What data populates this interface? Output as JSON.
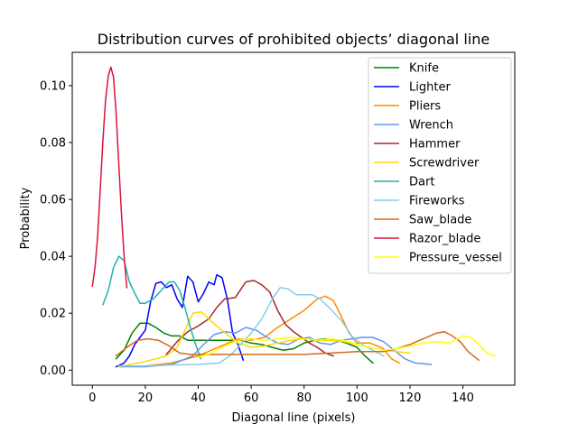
{
  "chart_data": {
    "type": "line",
    "title": "Distribution curves of prohibited objects’ diagonal line",
    "xlabel": "Diagonal line (pixels)",
    "ylabel": "Probability",
    "xlim": [
      -7.6,
      159.6
    ],
    "ylim": [
      -0.0053,
      0.1117
    ],
    "xticks": [
      0,
      20,
      40,
      60,
      80,
      100,
      120,
      140
    ],
    "xtick_labels": [
      "0",
      "20",
      "40",
      "60",
      "80",
      "100",
      "120",
      "140"
    ],
    "yticks": [
      0.0,
      0.02,
      0.04,
      0.06,
      0.08,
      0.1
    ],
    "ytick_labels": [
      "0.00",
      "0.02",
      "0.04",
      "0.06",
      "0.08",
      "0.10"
    ],
    "grid": false,
    "legend_position": "top-right",
    "series": [
      {
        "name": "Knife",
        "color": "#008000",
        "points": [
          [
            9,
            0.004
          ],
          [
            12,
            0.007
          ],
          [
            15,
            0.013
          ],
          [
            18,
            0.0165
          ],
          [
            21,
            0.0165
          ],
          [
            24,
            0.015
          ],
          [
            27,
            0.013
          ],
          [
            30,
            0.012
          ],
          [
            33,
            0.012
          ],
          [
            36,
            0.0105
          ],
          [
            40,
            0.0105
          ],
          [
            44,
            0.0105
          ],
          [
            48,
            0.0105
          ],
          [
            52,
            0.0105
          ],
          [
            56,
            0.0105
          ],
          [
            60,
            0.0095
          ],
          [
            64,
            0.009
          ],
          [
            68,
            0.008
          ],
          [
            72,
            0.007
          ],
          [
            76,
            0.0075
          ],
          [
            80,
            0.0095
          ],
          [
            84,
            0.0105
          ],
          [
            88,
            0.011
          ],
          [
            92,
            0.0105
          ],
          [
            96,
            0.0095
          ],
          [
            100,
            0.008
          ],
          [
            103,
            0.005
          ],
          [
            106,
            0.0025
          ]
        ]
      },
      {
        "name": "Lighter",
        "color": "#0000ff",
        "points": [
          [
            9,
            0.0012
          ],
          [
            12,
            0.0025
          ],
          [
            14,
            0.005
          ],
          [
            16,
            0.009
          ],
          [
            18,
            0.0115
          ],
          [
            20,
            0.014
          ],
          [
            22,
            0.024
          ],
          [
            24,
            0.0305
          ],
          [
            26,
            0.031
          ],
          [
            28,
            0.029
          ],
          [
            30,
            0.03
          ],
          [
            32,
            0.025
          ],
          [
            34,
            0.022
          ],
          [
            36,
            0.033
          ],
          [
            38,
            0.031
          ],
          [
            40,
            0.024
          ],
          [
            42,
            0.027
          ],
          [
            44,
            0.031
          ],
          [
            46,
            0.03
          ],
          [
            47,
            0.0335
          ],
          [
            49,
            0.0325
          ],
          [
            51,
            0.025
          ],
          [
            53,
            0.013
          ],
          [
            55,
            0.009
          ],
          [
            57,
            0.0035
          ]
        ]
      },
      {
        "name": "Pliers",
        "color": "#ff8c00",
        "points": [
          [
            10,
            0.0012
          ],
          [
            20,
            0.0015
          ],
          [
            30,
            0.0025
          ],
          [
            40,
            0.005
          ],
          [
            45,
            0.007
          ],
          [
            50,
            0.009
          ],
          [
            55,
            0.011
          ],
          [
            60,
            0.0105
          ],
          [
            65,
            0.0115
          ],
          [
            70,
            0.015
          ],
          [
            75,
            0.018
          ],
          [
            80,
            0.021
          ],
          [
            85,
            0.025
          ],
          [
            88,
            0.026
          ],
          [
            91,
            0.0245
          ],
          [
            94,
            0.019
          ],
          [
            97,
            0.013
          ],
          [
            100,
            0.0095
          ],
          [
            105,
            0.0095
          ],
          [
            110,
            0.0075
          ],
          [
            113,
            0.004
          ],
          [
            116,
            0.0025
          ]
        ]
      },
      {
        "name": "Wrench",
        "color": "#6495ed",
        "points": [
          [
            10,
            0.0012
          ],
          [
            20,
            0.0012
          ],
          [
            30,
            0.002
          ],
          [
            38,
            0.005
          ],
          [
            42,
            0.009
          ],
          [
            46,
            0.0125
          ],
          [
            50,
            0.0135
          ],
          [
            54,
            0.013
          ],
          [
            58,
            0.015
          ],
          [
            62,
            0.014
          ],
          [
            66,
            0.0115
          ],
          [
            70,
            0.0095
          ],
          [
            74,
            0.009
          ],
          [
            78,
            0.011
          ],
          [
            82,
            0.0115
          ],
          [
            86,
            0.0095
          ],
          [
            90,
            0.009
          ],
          [
            94,
            0.0105
          ],
          [
            98,
            0.011
          ],
          [
            102,
            0.0115
          ],
          [
            106,
            0.0115
          ],
          [
            110,
            0.01
          ],
          [
            114,
            0.007
          ],
          [
            118,
            0.004
          ],
          [
            122,
            0.0025
          ],
          [
            128,
            0.002
          ]
        ]
      },
      {
        "name": "Hammer",
        "color": "#a52a2a",
        "points": [
          [
            28,
            0.0055
          ],
          [
            32,
            0.01
          ],
          [
            36,
            0.0135
          ],
          [
            40,
            0.0155
          ],
          [
            44,
            0.018
          ],
          [
            47,
            0.022
          ],
          [
            50,
            0.025
          ],
          [
            54,
            0.0255
          ],
          [
            58,
            0.031
          ],
          [
            61,
            0.0315
          ],
          [
            64,
            0.03
          ],
          [
            67,
            0.0275
          ],
          [
            70,
            0.021
          ],
          [
            73,
            0.016
          ],
          [
            76,
            0.0135
          ],
          [
            79,
            0.0115
          ],
          [
            82,
            0.0095
          ],
          [
            85,
            0.008
          ],
          [
            88,
            0.006
          ],
          [
            91,
            0.005
          ]
        ]
      },
      {
        "name": "Screwdriver",
        "color": "#ffd700",
        "points": [
          [
            10,
            0.0012
          ],
          [
            20,
            0.003
          ],
          [
            28,
            0.005
          ],
          [
            32,
            0.008
          ],
          [
            35,
            0.014
          ],
          [
            38,
            0.02
          ],
          [
            41,
            0.0205
          ],
          [
            44,
            0.018
          ],
          [
            47,
            0.0155
          ],
          [
            51,
            0.0125
          ],
          [
            55,
            0.0095
          ],
          [
            60,
            0.008
          ],
          [
            65,
            0.0085
          ],
          [
            70,
            0.0095
          ],
          [
            75,
            0.0105
          ],
          [
            80,
            0.011
          ],
          [
            85,
            0.0105
          ],
          [
            90,
            0.0105
          ],
          [
            95,
            0.01
          ],
          [
            100,
            0.009
          ],
          [
            105,
            0.008
          ],
          [
            110,
            0.007
          ],
          [
            115,
            0.0065
          ],
          [
            120,
            0.006
          ]
        ]
      },
      {
        "name": "Dart",
        "color": "#20b2aa",
        "points": [
          [
            4,
            0.023
          ],
          [
            6,
            0.028
          ],
          [
            8,
            0.036
          ],
          [
            10,
            0.04
          ],
          [
            12,
            0.0385
          ],
          [
            14,
            0.031
          ],
          [
            16,
            0.027
          ],
          [
            18,
            0.0235
          ],
          [
            20,
            0.0235
          ],
          [
            23,
            0.025
          ],
          [
            26,
            0.028
          ],
          [
            29,
            0.031
          ],
          [
            31,
            0.031
          ],
          [
            33,
            0.028
          ],
          [
            35,
            0.022
          ],
          [
            37,
            0.015
          ],
          [
            39,
            0.009
          ],
          [
            41,
            0.004
          ]
        ]
      },
      {
        "name": "Fireworks",
        "color": "#87ceeb",
        "points": [
          [
            10,
            0.0015
          ],
          [
            20,
            0.0015
          ],
          [
            30,
            0.0018
          ],
          [
            40,
            0.002
          ],
          [
            48,
            0.0025
          ],
          [
            52,
            0.005
          ],
          [
            56,
            0.009
          ],
          [
            60,
            0.013
          ],
          [
            64,
            0.018
          ],
          [
            68,
            0.025
          ],
          [
            71,
            0.029
          ],
          [
            74,
            0.0285
          ],
          [
            77,
            0.0265
          ],
          [
            80,
            0.0265
          ],
          [
            83,
            0.0265
          ],
          [
            86,
            0.025
          ],
          [
            90,
            0.0215
          ],
          [
            94,
            0.0175
          ],
          [
            98,
            0.012
          ],
          [
            102,
            0.009
          ],
          [
            106,
            0.007
          ],
          [
            110,
            0.005
          ]
        ]
      },
      {
        "name": "Saw_blade",
        "color": "#d2691e",
        "points": [
          [
            9,
            0.005
          ],
          [
            13,
            0.008
          ],
          [
            17,
            0.0105
          ],
          [
            21,
            0.011
          ],
          [
            25,
            0.0105
          ],
          [
            29,
            0.0085
          ],
          [
            33,
            0.006
          ],
          [
            37,
            0.0055
          ],
          [
            41,
            0.0055
          ],
          [
            45,
            0.0055
          ],
          [
            50,
            0.0055
          ],
          [
            60,
            0.0055
          ],
          [
            70,
            0.0055
          ],
          [
            80,
            0.0055
          ],
          [
            90,
            0.006
          ],
          [
            100,
            0.0065
          ],
          [
            110,
            0.0065
          ],
          [
            115,
            0.0075
          ],
          [
            120,
            0.009
          ],
          [
            125,
            0.011
          ],
          [
            130,
            0.013
          ],
          [
            133,
            0.0135
          ],
          [
            136,
            0.012
          ],
          [
            139,
            0.01
          ],
          [
            142,
            0.0065
          ],
          [
            146,
            0.0035
          ]
        ]
      },
      {
        "name": "Razor_blade",
        "color": "#dc143c",
        "points": [
          [
            0,
            0.0295
          ],
          [
            1,
            0.036
          ],
          [
            2,
            0.047
          ],
          [
            3,
            0.064
          ],
          [
            4,
            0.081
          ],
          [
            5,
            0.095
          ],
          [
            6,
            0.1035
          ],
          [
            7,
            0.1065
          ],
          [
            8,
            0.103
          ],
          [
            9,
            0.09
          ],
          [
            10,
            0.072
          ],
          [
            11,
            0.055
          ],
          [
            12,
            0.04
          ],
          [
            13,
            0.029
          ]
        ]
      },
      {
        "name": "Pressure_vessel",
        "color": "#ffff00",
        "points": [
          [
            40,
            0.0045
          ],
          [
            45,
            0.006
          ],
          [
            50,
            0.0085
          ],
          [
            55,
            0.0105
          ],
          [
            60,
            0.011
          ],
          [
            65,
            0.0105
          ],
          [
            70,
            0.011
          ],
          [
            75,
            0.0115
          ],
          [
            80,
            0.011
          ],
          [
            85,
            0.0105
          ],
          [
            90,
            0.011
          ],
          [
            95,
            0.0105
          ],
          [
            100,
            0.009
          ],
          [
            105,
            0.008
          ],
          [
            110,
            0.007
          ],
          [
            115,
            0.0075
          ],
          [
            120,
            0.0085
          ],
          [
            125,
            0.0095
          ],
          [
            130,
            0.01
          ],
          [
            135,
            0.0095
          ],
          [
            140,
            0.012
          ],
          [
            143,
            0.0115
          ],
          [
            146,
            0.009
          ],
          [
            149,
            0.006
          ],
          [
            152,
            0.005
          ]
        ]
      }
    ]
  }
}
